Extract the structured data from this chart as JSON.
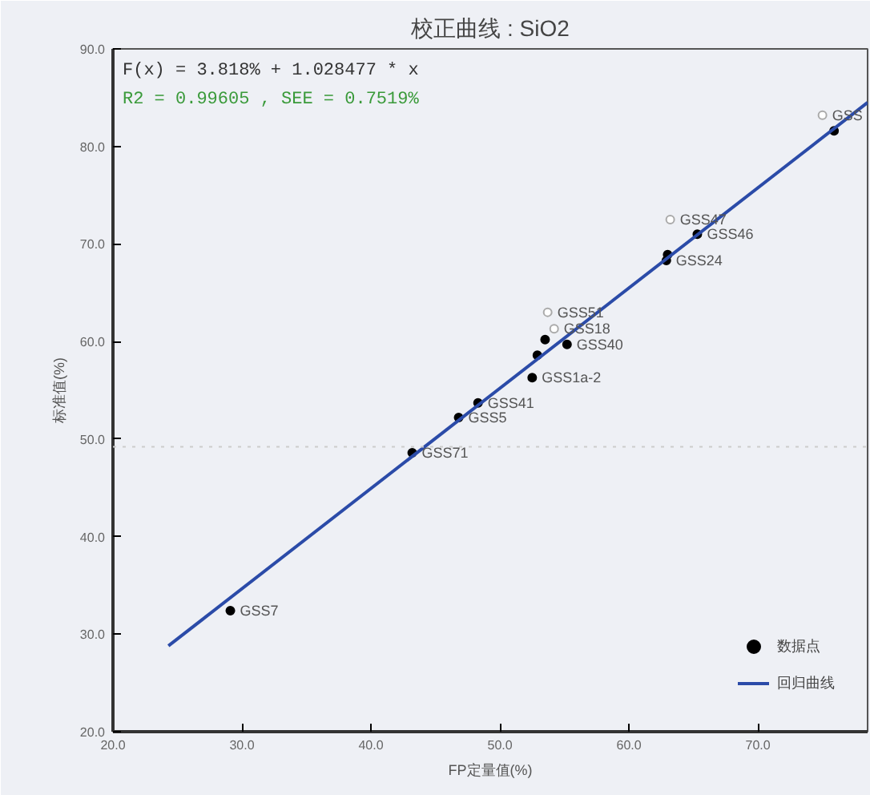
{
  "chart_data": {
    "type": "scatter",
    "title": "校正曲线 : SiO2",
    "xlabel": "FP定量值(%)",
    "ylabel": "标准值(%)",
    "xlim": [
      20,
      78.5
    ],
    "ylim": [
      20,
      90
    ],
    "xticks": [
      {
        "value": 20,
        "label": "20.0"
      },
      {
        "value": 30,
        "label": "30.0"
      },
      {
        "value": 40,
        "label": "40.0"
      },
      {
        "value": 50,
        "label": "50.0"
      },
      {
        "value": 60,
        "label": "60.0"
      },
      {
        "value": 70,
        "label": "70.0"
      }
    ],
    "yticks": [
      {
        "value": 20,
        "label": "20.0"
      },
      {
        "value": 30,
        "label": "30.0"
      },
      {
        "value": 40,
        "label": "40.0"
      },
      {
        "value": 50,
        "label": "50.0"
      },
      {
        "value": 60,
        "label": "60.0"
      },
      {
        "value": 70,
        "label": "70.0"
      },
      {
        "value": 80,
        "label": "80.0"
      },
      {
        "value": 90,
        "label": "90.0"
      }
    ],
    "grid": false,
    "legend": "bottom right",
    "series": [
      {
        "name": "数据点",
        "marker": "circle",
        "color": "#000000",
        "x": [
          29.1,
          43.2,
          46.8,
          48.3,
          52.5,
          52.9,
          53.5,
          55.2,
          62.9,
          63.0,
          65.3,
          75.9
        ],
        "values": [
          32.4,
          48.6,
          52.2,
          53.7,
          56.3,
          58.6,
          60.2,
          59.7,
          68.3,
          68.9,
          71.0,
          81.6
        ]
      },
      {
        "marker": "circle",
        "color": "#aaaaaa",
        "x": [
          53.7,
          54.2,
          63.2,
          75.0
        ],
        "values": [
          63.0,
          61.3,
          72.5,
          83.2
        ]
      },
      {
        "name": "回归曲线",
        "type": "line",
        "color": "#2b4ba8",
        "x": [
          24.3,
          78.5
        ],
        "values": [
          28.8,
          84.5
        ]
      }
    ],
    "ref_lines": [
      {
        "axis": "y",
        "value": 49.2,
        "color": "#cccccc",
        "line_style": "dotted"
      }
    ],
    "annotations": [
      "F(x) = 3.818% + 1.028477 * x",
      "R2 = 0.99605 , SEE = 0.7519%",
      {
        "text": "GSS7",
        "x": 29.1,
        "y": 32.4
      },
      {
        "text": "GSS71",
        "x": 43.2,
        "y": 48.6
      },
      {
        "text": "GSS5",
        "x": 46.8,
        "y": 52.2
      },
      {
        "text": "GSS41",
        "x": 48.3,
        "y": 53.7
      },
      {
        "text": "GSS1a-2",
        "x": 52.5,
        "y": 56.3
      },
      {
        "text": "GSS51",
        "x": 53.7,
        "y": 63.0
      },
      {
        "text": "GSS18",
        "x": 54.2,
        "y": 61.3
      },
      {
        "text": "GSS40",
        "x": 55.2,
        "y": 59.7
      },
      {
        "text": "GSS24",
        "x": 62.9,
        "y": 68.3
      },
      {
        "text": "GSS47",
        "x": 63.2,
        "y": 72.5
      },
      {
        "text": "GSS46",
        "x": 65.3,
        "y": 71.0
      },
      {
        "text": "GSS",
        "x": 75.0,
        "y": 83.2
      }
    ]
  }
}
